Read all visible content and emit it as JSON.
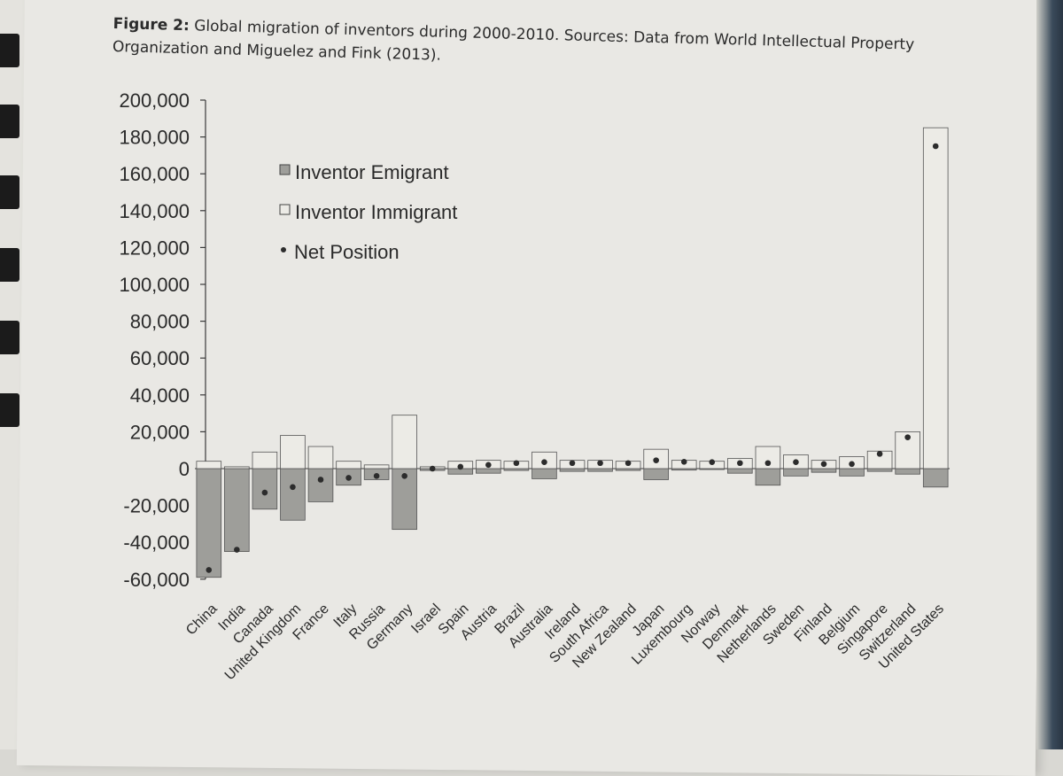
{
  "caption": {
    "label": "Figure 2:",
    "text": "Global migration of inventors during 2000-2010. Sources: Data from World Intellectual Property Organization and Miguelez and Fink (2013)."
  },
  "chart_data": {
    "type": "bar",
    "title": "Global migration of inventors during 2000-2010",
    "ylim": [
      -60000,
      200000
    ],
    "yticks": [
      200000,
      180000,
      160000,
      140000,
      120000,
      100000,
      80000,
      60000,
      40000,
      20000,
      0,
      -20000,
      -40000,
      -60000
    ],
    "ytick_labels": [
      "200,000",
      "180,000",
      "160,000",
      "140,000",
      "120,000",
      "100,000",
      "80,000",
      "60,000",
      "40,000",
      "20,000",
      "0",
      "-20,000",
      "-40,000",
      "-60,000"
    ],
    "categories": [
      "China",
      "India",
      "Canada",
      "United Kingdom",
      "France",
      "Italy",
      "Russia",
      "Germany",
      "Israel",
      "Spain",
      "Austria",
      "Brazil",
      "Australia",
      "Ireland",
      "South Africa",
      "New Zealand",
      "Japan",
      "Luxembourg",
      "Norway",
      "Denmark",
      "Netherlands",
      "Sweden",
      "Finland",
      "Belgium",
      "Singapore",
      "Switzerland",
      "United States"
    ],
    "series": [
      {
        "name": "Inventor Emigrant",
        "values": [
          -59000,
          -45000,
          -22000,
          -28000,
          -18000,
          -9000,
          -6000,
          -33000,
          -1000,
          -3000,
          -2500,
          -1000,
          -5500,
          -1500,
          -1500,
          -1000,
          -6000,
          -800,
          -500,
          -2500,
          -9000,
          -4000,
          -2000,
          -4000,
          -1500,
          -3000,
          -10000
        ]
      },
      {
        "name": "Inventor Immigrant",
        "values": [
          4000,
          1000,
          9000,
          18000,
          12000,
          4000,
          2000,
          29000,
          1000,
          4000,
          4500,
          4000,
          9000,
          4500,
          4500,
          4000,
          10500,
          4500,
          4000,
          5500,
          12000,
          7500,
          4500,
          6500,
          9500,
          20000,
          185000
        ]
      },
      {
        "name": "Net Position",
        "values": [
          -55000,
          -44000,
          -13000,
          -10000,
          -6000,
          -5000,
          -4000,
          -4000,
          0,
          1000,
          2000,
          3000,
          3500,
          3000,
          3000,
          3000,
          4500,
          3700,
          3500,
          3000,
          3000,
          3500,
          2500,
          2500,
          8000,
          17000,
          175000
        ]
      }
    ]
  },
  "colors": {
    "emigrant": "#9e9e9a",
    "immigrant": "#ecebe6",
    "dot": "#2c2c2c",
    "axis": "#3a3a3a"
  }
}
